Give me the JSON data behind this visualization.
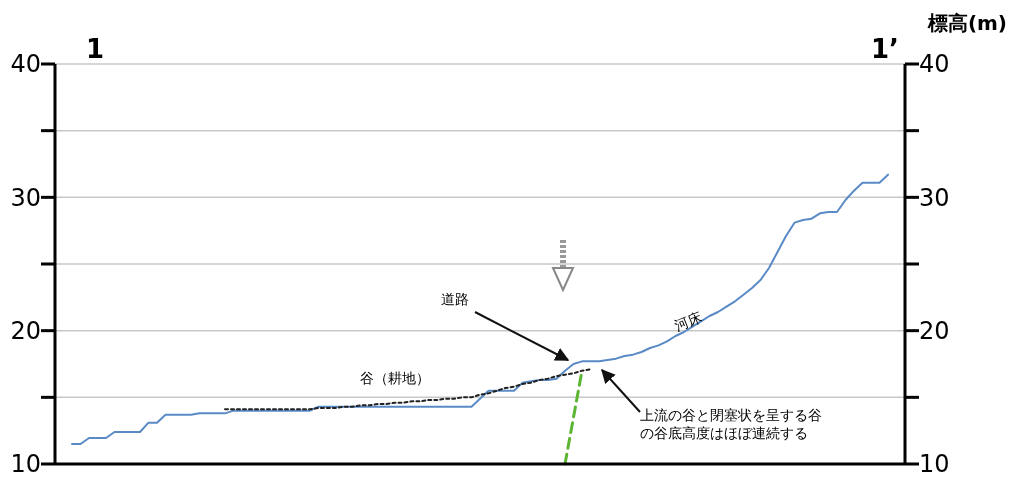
{
  "chart_data": {
    "type": "line",
    "y2label": "標高(m)",
    "categories": [
      null,
      null,
      null,
      null,
      null,
      null,
      null,
      null,
      null,
      null,
      null,
      null,
      null,
      null,
      null,
      null,
      null,
      null,
      null,
      null,
      null,
      null,
      null,
      null,
      null,
      null,
      null,
      null,
      null,
      null,
      null,
      null,
      null,
      null,
      null,
      null,
      null,
      null,
      null,
      null,
      null,
      null,
      null,
      null,
      null,
      null,
      null,
      null,
      null,
      null,
      null,
      null,
      null,
      null,
      null,
      null,
      null,
      null,
      null,
      null,
      null,
      null,
      null,
      null,
      null,
      null,
      null,
      null,
      null,
      null,
      null,
      null,
      null,
      null,
      null,
      null,
      null,
      null,
      null,
      null,
      null,
      null,
      null,
      null,
      null,
      null,
      null,
      null,
      null,
      null,
      null,
      null,
      null,
      null,
      null,
      null,
      null,
      null,
      null,
      null,
      null
    ],
    "ylim": [
      10,
      40
    ],
    "yticks": [
      10,
      {
        "value": 15,
        "label": null
      },
      20,
      {
        "value": 25,
        "label": null
      },
      30,
      {
        "value": 35,
        "label": null
      },
      40
    ],
    "y2lim": [
      10,
      40
    ],
    "y2ticks": [
      10,
      {
        "value": 15,
        "label": null
      },
      20,
      {
        "value": 25,
        "label": null
      },
      30,
      {
        "value": 35,
        "label": null
      },
      40
    ],
    "grid": "y",
    "series": [
      {
        "color": "#5a8ac6",
        "line_style": "solid",
        "values": [
          null,
          null,
          11.5,
          11.5,
          11.95,
          11.95,
          11.95,
          12.4,
          12.4,
          12.4,
          12.4,
          13.1,
          13.1,
          13.7,
          13.7,
          13.7,
          13.7,
          13.8,
          13.8,
          13.8,
          13.8,
          14.0,
          14.0,
          14.0,
          14.0,
          14.0,
          14.0,
          14.0,
          14.0,
          14.0,
          14.0,
          14.3,
          14.3,
          14.3,
          14.3,
          14.3,
          14.3,
          14.3,
          14.3,
          14.3,
          14.3,
          14.3,
          14.3,
          14.3,
          14.3,
          14.3,
          14.3,
          14.3,
          14.3,
          14.3,
          14.9,
          15.5,
          15.5,
          15.5,
          15.5,
          16.1,
          16.2,
          16.3,
          16.3,
          16.4,
          17.0,
          17.5,
          17.7,
          17.7,
          17.7,
          17.8,
          17.9,
          18.1,
          18.2,
          18.4,
          18.7,
          18.9,
          19.2,
          19.6,
          19.9,
          20.3,
          20.7,
          21.1,
          21.4,
          21.8,
          22.2,
          22.7,
          23.2,
          23.8,
          24.7,
          25.9,
          27.1,
          28.1,
          28.3,
          28.4,
          28.8,
          28.9,
          28.9,
          29.8,
          30.5,
          31.1,
          31.1,
          31.1,
          31.7,
          null,
          null
        ]
      },
      {
        "color": "#222222",
        "line_style": "dotted",
        "values": [
          null,
          null,
          null,
          null,
          null,
          null,
          null,
          null,
          null,
          null,
          null,
          null,
          null,
          null,
          null,
          null,
          null,
          null,
          null,
          null,
          14.1,
          14.1,
          14.1,
          14.1,
          14.1,
          14.1,
          14.1,
          14.1,
          14.1,
          14.1,
          14.1,
          14.2,
          14.2,
          14.2,
          14.3,
          14.3,
          14.4,
          14.4,
          14.5,
          14.5,
          14.6,
          14.6,
          14.7,
          14.7,
          14.8,
          14.8,
          14.9,
          14.9,
          15.0,
          15.0,
          15.2,
          15.3,
          15.5,
          15.7,
          15.8,
          16.0,
          16.1,
          16.3,
          16.4,
          16.6,
          16.7,
          16.8,
          17.0,
          17.1,
          null,
          null,
          null,
          null,
          null,
          null,
          null,
          null,
          null,
          null,
          null,
          null,
          null,
          null,
          null,
          null,
          null,
          null,
          null,
          null,
          null,
          null,
          null,
          null,
          null,
          null,
          null,
          null,
          null,
          null,
          null,
          null,
          null,
          null,
          null,
          null,
          null
        ]
      },
      {
        "color": "#5cb531",
        "line_style": "dashed",
        "values": [
          null,
          null,
          null,
          null,
          null,
          null,
          null,
          null,
          null,
          null,
          null,
          null,
          null,
          null,
          null,
          null,
          null,
          null,
          null,
          null,
          null,
          null,
          null,
          null,
          null,
          null,
          null,
          null,
          null,
          null,
          null,
          null,
          null,
          null,
          null,
          null,
          null,
          null,
          null,
          null,
          null,
          null,
          null,
          null,
          null,
          null,
          null,
          null,
          null,
          null,
          null,
          null,
          null,
          null,
          null,
          null,
          null,
          null,
          null,
          null,
          10,
          13.5,
          17.0,
          null,
          null,
          null,
          null,
          null,
          null,
          null,
          null,
          null,
          null,
          null,
          null,
          null,
          null,
          null,
          null,
          null,
          null,
          null,
          null,
          null,
          null,
          null,
          null,
          null,
          null,
          null,
          null,
          null,
          null,
          null,
          null,
          null,
          null,
          null,
          null,
          null,
          null
        ]
      }
    ],
    "annotations": [
      "1",
      "1’",
      "道路",
      "河床",
      "谷（耕地）",
      "上流の谷と閉塞状を呈する谷の谷底高度はほぼ連続する"
    ]
  }
}
